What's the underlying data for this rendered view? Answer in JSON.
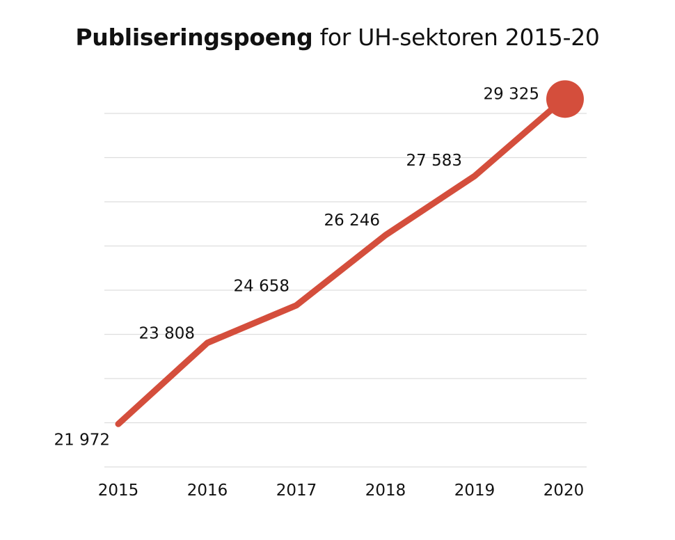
{
  "chart_data": {
    "type": "line",
    "title_bold": "Publiseringspoeng",
    "title_rest": " for UH-sektoren 2015-20",
    "categories": [
      "2015",
      "2016",
      "2017",
      "2018",
      "2019",
      "2020"
    ],
    "series": [
      {
        "values": [
          21972,
          23808,
          24658,
          26246,
          27583,
          29325
        ]
      }
    ],
    "value_labels": [
      "21 972",
      "23 808",
      "24 658",
      "26 246",
      "27 583",
      "29 325"
    ],
    "ylim": [
      21000,
      29000
    ],
    "grid": true,
    "colors": {
      "line": "#d44e3c",
      "grid": "#dddddd"
    }
  }
}
